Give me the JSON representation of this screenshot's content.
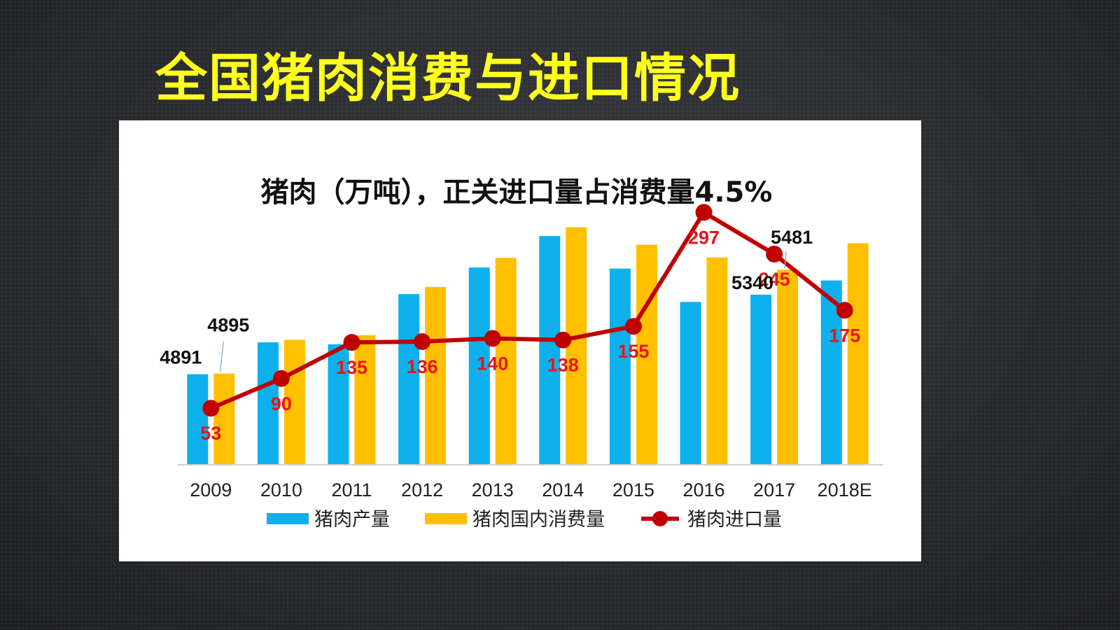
{
  "slide": {
    "title": "全国猪肉消费与进口情况"
  },
  "colors": {
    "production": "#0db0ea",
    "consumption": "#ffc000",
    "imports": "#c00000",
    "import_label": "#e8141a",
    "title_yellow": "#ffff1e"
  },
  "chart_data": {
    "type": "bar",
    "title": "猪肉（万吨），正关进口量占消费量4.5%",
    "categories": [
      "2009",
      "2010",
      "2011",
      "2012",
      "2013",
      "2014",
      "2015",
      "2016",
      "2017",
      "2018E"
    ],
    "series": [
      {
        "name": "猪肉产量",
        "kind": "bar",
        "values": [
          4891,
          5071,
          5060,
          5343,
          5493,
          5671,
          5487,
          5299,
          5340,
          5420
        ]
      },
      {
        "name": "猪肉国内消费量",
        "kind": "bar",
        "values": [
          4895,
          5085,
          5111,
          5383,
          5548,
          5720,
          5622,
          5550,
          5481,
          5630
        ]
      },
      {
        "name": "猪肉进口量",
        "kind": "line",
        "axis": "secondary",
        "values": [
          53,
          90,
          135,
          136,
          140,
          138,
          155,
          297,
          245,
          175
        ]
      }
    ],
    "bar_data_labels": [
      {
        "series": 0,
        "index": 0,
        "text": "4891"
      },
      {
        "series": 1,
        "index": 0,
        "text": "4895"
      },
      {
        "series": 0,
        "index": 8,
        "text": "5340"
      },
      {
        "series": 1,
        "index": 8,
        "text": "5481"
      }
    ],
    "import_data_labels": [
      "53",
      "90",
      "135",
      "136",
      "140",
      "138",
      "155",
      "297",
      "245",
      "175"
    ],
    "bar_axis_range": [
      4380,
      5790
    ],
    "line_axis_range": [
      0,
      320
    ],
    "legend_position": "bottom",
    "grid": false
  }
}
